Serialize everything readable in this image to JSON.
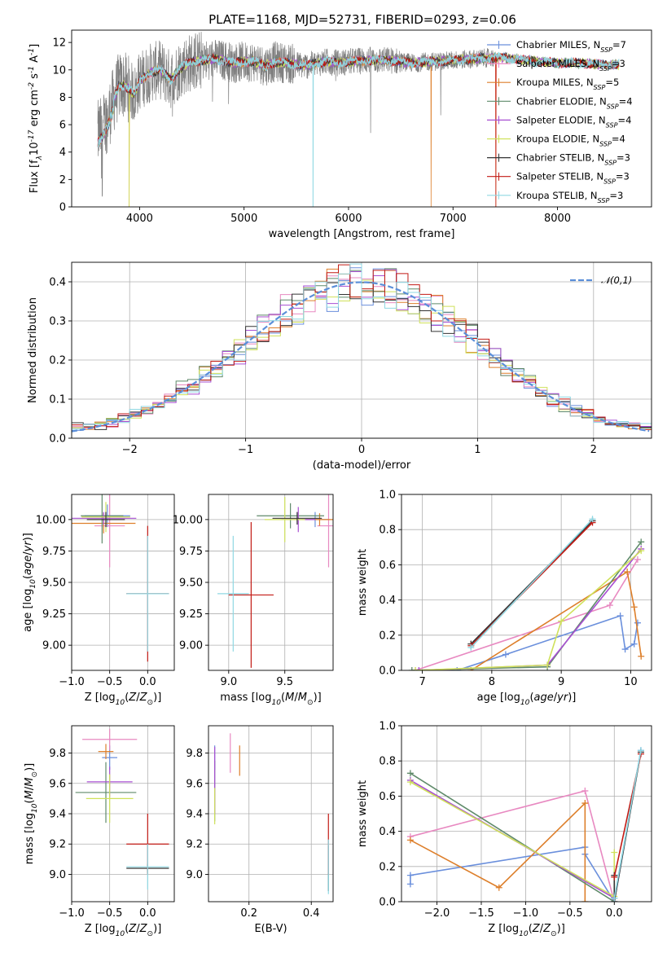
{
  "figure": {
    "title": "PLATE=1168, MJD=52731, FIBERID=0293, z=0.06"
  },
  "models": [
    {
      "name": "Chabrier MILES",
      "nssp": "7",
      "color": "#6a8fdc"
    },
    {
      "name": "Salpeter MILES",
      "nssp": "3",
      "color": "#e889c1"
    },
    {
      "name": "Kroupa MILES",
      "nssp": "5",
      "color": "#dd7f2b"
    },
    {
      "name": "Chabrier ELODIE",
      "nssp": "4",
      "color": "#5f8a6a"
    },
    {
      "name": "Salpeter ELODIE",
      "nssp": "4",
      "color": "#a84fd2"
    },
    {
      "name": "Kroupa ELODIE",
      "nssp": "4",
      "color": "#cfe15a"
    },
    {
      "name": "Chabrier STELIB",
      "nssp": "3",
      "color": "#333333"
    },
    {
      "name": "Salpeter STELIB",
      "nssp": "3",
      "color": "#c21a14"
    },
    {
      "name": "Kroupa STELIB",
      "nssp": "3",
      "color": "#8fd8e3"
    }
  ],
  "chart_data": [
    {
      "id": "spectrum",
      "type": "line",
      "xlabel": "wavelength [Angstrom, rest frame]",
      "ylabel": "Flux [f$_\\lambda$10$^{-17}$ erg cm$^{-2}$ s$^{-1}$ A$^{-1}$]",
      "xlim": [
        3350,
        8900
      ],
      "ylim": [
        0,
        12.9
      ],
      "xticks": [
        4000,
        5000,
        6000,
        7000,
        8000
      ],
      "yticks": [
        0,
        2,
        4,
        6,
        8,
        10,
        12
      ],
      "grid": false,
      "legend": "top-right",
      "data_color": "#808080",
      "continuum": [
        [
          3600,
          5.3
        ],
        [
          3650,
          5.8
        ],
        [
          3700,
          6.6
        ],
        [
          3750,
          7.8
        ],
        [
          3800,
          8.8
        ],
        [
          3850,
          8.9
        ],
        [
          3900,
          8.6
        ],
        [
          3950,
          8.2
        ],
        [
          4000,
          9.2
        ],
        [
          4100,
          9.8
        ],
        [
          4200,
          10.0
        ],
        [
          4300,
          9.3
        ],
        [
          4400,
          10.2
        ],
        [
          4500,
          10.6
        ],
        [
          4600,
          10.7
        ],
        [
          4700,
          10.8
        ],
        [
          4800,
          10.7
        ],
        [
          4900,
          10.5
        ],
        [
          5000,
          10.6
        ],
        [
          5100,
          10.6
        ],
        [
          5200,
          10.3
        ],
        [
          5300,
          10.6
        ],
        [
          5400,
          10.5
        ],
        [
          5500,
          10.4
        ],
        [
          5600,
          10.3
        ],
        [
          5700,
          10.5
        ],
        [
          5800,
          10.6
        ],
        [
          5900,
          10.5
        ],
        [
          6000,
          10.6
        ],
        [
          6200,
          10.7
        ],
        [
          6400,
          10.7
        ],
        [
          6600,
          10.5
        ],
        [
          6800,
          10.6
        ],
        [
          7000,
          10.7
        ],
        [
          7200,
          10.8
        ],
        [
          7400,
          10.9
        ],
        [
          7600,
          10.8
        ],
        [
          7800,
          10.6
        ],
        [
          8000,
          10.5
        ],
        [
          8200,
          10.5
        ],
        [
          8400,
          10.4
        ],
        [
          8590,
          10.4
        ]
      ],
      "data_range": [
        3600,
        7390
      ],
      "dropouts": [
        {
          "x": 3900,
          "models": [
            "Kroupa MILES",
            "Kroupa ELODIE"
          ]
        },
        {
          "x": 5660,
          "models": [
            "Kroupa STELIB"
          ]
        },
        {
          "x": 6790,
          "models": [
            "Kroupa MILES"
          ]
        },
        {
          "x": 7410,
          "models": [
            "Kroupa MILES",
            "Salpeter STELIB"
          ]
        }
      ]
    },
    {
      "id": "residuals",
      "type": "histogram",
      "xlabel": "(data-model)/error",
      "ylabel": "Normed distribution",
      "xlim": [
        -2.5,
        2.5
      ],
      "ylim": [
        0,
        0.45
      ],
      "xticks": [
        -2,
        -1,
        0,
        1,
        2
      ],
      "yticks": [
        0.0,
        0.1,
        0.2,
        0.3,
        0.4
      ],
      "grid": true,
      "legend": "top-right",
      "gaussian_label": "$\\mathcal{N}(0,1)$",
      "gaussian_color": "#5b8fd9",
      "bin_width": 0.1
    },
    {
      "id": "age-vs-Z",
      "type": "errorbar",
      "xlabel": "Z [log$_{10}$($Z$/$Z_\\odot$)]",
      "ylabel": "age  [log$_{10}$($age$/$yr$)]",
      "xlim": [
        -1.0,
        0.35
      ],
      "ylim": [
        8.8,
        10.2
      ],
      "xticks": [
        -1.0,
        -0.5,
        0.0
      ],
      "yticks": [
        9.0,
        9.25,
        9.5,
        9.75,
        10.0
      ],
      "grid": true,
      "points": [
        {
          "model": "Chabrier MILES",
          "x": -0.53,
          "xerr": 0.3,
          "y": 10.03,
          "yerr": 0.09
        },
        {
          "model": "Salpeter MILES",
          "x": -0.5,
          "xerr": 0.2,
          "y": 9.95,
          "yerr": 0.33
        },
        {
          "model": "Kroupa MILES",
          "x": -0.58,
          "xerr": 0.42,
          "y": 9.97,
          "yerr": 0.08
        },
        {
          "model": "Chabrier ELODIE",
          "x": -0.6,
          "xerr": 0.28,
          "y": 10.03,
          "yerr": 0.22
        },
        {
          "model": "Salpeter ELODIE",
          "x": -0.58,
          "xerr": 0.43,
          "y": 10.01,
          "yerr": 0.05
        },
        {
          "model": "Kroupa ELODIE",
          "x": -0.55,
          "xerr": 0.32,
          "y": 10.02,
          "yerr": 0.12
        },
        {
          "model": "Chabrier STELIB",
          "x": -0.55,
          "xerr": 0.25,
          "y": 10.0,
          "yerr": 0.06
        },
        {
          "model": "Salpeter STELIB",
          "x": 0.0,
          "xerr": 0.28,
          "y": 9.41,
          "yerr": 0.54
        },
        {
          "model": "Kroupa STELIB",
          "x": 0.0,
          "xerr": 0.28,
          "y": 9.41,
          "yerr": 0.46
        }
      ]
    },
    {
      "id": "age-vs-mass",
      "type": "errorbar",
      "xlabel": "mass [log$_{10}$($M$/$M_\\odot$)]",
      "ylabel": "",
      "xlim": [
        8.82,
        9.93
      ],
      "ylim": [
        8.8,
        10.2
      ],
      "xticks": [
        9.0,
        9.5
      ],
      "yticks": [
        9.0,
        9.25,
        9.5,
        9.75,
        10.0
      ],
      "grid": true,
      "points": [
        {
          "model": "Chabrier MILES",
          "x": 9.77,
          "xerr": 0.12,
          "y": 10.0,
          "yerr": 0.06
        },
        {
          "model": "Salpeter MILES",
          "x": 9.89,
          "xerr": 0.1,
          "y": 9.95,
          "yerr": 0.33
        },
        {
          "model": "Kroupa MILES",
          "x": 9.81,
          "xerr": 0.12,
          "y": 10.0,
          "yerr": 0.05
        },
        {
          "model": "Chabrier ELODIE",
          "x": 9.55,
          "xerr": 0.3,
          "y": 10.03,
          "yerr": 0.1
        },
        {
          "model": "Salpeter ELODIE",
          "x": 9.62,
          "xerr": 0.15,
          "y": 10.0,
          "yerr": 0.1
        },
        {
          "model": "Kroupa ELODIE",
          "x": 9.5,
          "xerr": 0.18,
          "y": 10.0,
          "yerr": 0.18
        },
        {
          "model": "Chabrier STELIB",
          "x": 9.61,
          "xerr": 0.22,
          "y": 10.01,
          "yerr": 0.05
        },
        {
          "model": "Salpeter STELIB",
          "x": 9.2,
          "xerr": 0.2,
          "y": 9.4,
          "yerr": 0.58
        },
        {
          "model": "Kroupa STELIB",
          "x": 9.04,
          "xerr": 0.14,
          "y": 9.41,
          "yerr": 0.46
        }
      ]
    },
    {
      "id": "massweight-vs-age",
      "type": "line",
      "xlabel": "age  [log$_{10}$($age$/$yr$)]",
      "ylabel": "mass weight",
      "xlim": [
        6.7,
        10.3
      ],
      "ylim": [
        0,
        1.0
      ],
      "xticks": [
        7,
        8,
        9,
        10
      ],
      "yticks": [
        0.0,
        0.2,
        0.4,
        0.6,
        0.8,
        1.0
      ],
      "grid": true,
      "series": [
        {
          "model": "Chabrier MILES",
          "points": [
            [
              7.5,
              0.0
            ],
            [
              8.2,
              0.09
            ],
            [
              9.85,
              0.31
            ],
            [
              9.92,
              0.12
            ],
            [
              10.05,
              0.15
            ],
            [
              10.1,
              0.27
            ]
          ]
        },
        {
          "model": "Salpeter MILES",
          "points": [
            [
              6.9,
              0.0
            ],
            [
              9.7,
              0.37
            ],
            [
              10.1,
              0.63
            ]
          ]
        },
        {
          "model": "Kroupa MILES",
          "points": [
            [
              7.7,
              0.0
            ],
            [
              9.95,
              0.56
            ],
            [
              10.05,
              0.36
            ],
            [
              10.15,
              0.08
            ]
          ]
        },
        {
          "model": "Chabrier ELODIE",
          "points": [
            [
              6.85,
              0.0
            ],
            [
              8.8,
              0.02
            ],
            [
              10.15,
              0.73
            ]
          ]
        },
        {
          "model": "Salpeter ELODIE",
          "points": [
            [
              6.95,
              0.0
            ],
            [
              8.8,
              0.03
            ],
            [
              10.15,
              0.69
            ]
          ]
        },
        {
          "model": "Kroupa ELODIE",
          "points": [
            [
              6.9,
              0.0
            ],
            [
              8.8,
              0.03
            ],
            [
              9.0,
              0.28
            ],
            [
              10.15,
              0.68
            ]
          ]
        },
        {
          "model": "Chabrier STELIB",
          "points": [
            [
              7.7,
              0.15
            ],
            [
              9.45,
              0.85
            ]
          ]
        },
        {
          "model": "Salpeter STELIB",
          "points": [
            [
              7.7,
              0.14
            ],
            [
              9.45,
              0.84
            ]
          ]
        },
        {
          "model": "Kroupa STELIB",
          "points": [
            [
              7.7,
              0.13
            ],
            [
              9.45,
              0.86
            ]
          ]
        }
      ]
    },
    {
      "id": "mass-vs-Z",
      "type": "errorbar",
      "xlabel": "Z [log$_{10}$($Z$/$Z_\\odot$)]",
      "ylabel": "mass [log$_{10}$($M$/$M_\\odot$)]",
      "xlim": [
        -1.0,
        0.35
      ],
      "ylim": [
        8.82,
        9.98
      ],
      "xticks": [
        -1.0,
        -0.5,
        0.0
      ],
      "yticks": [
        9.0,
        9.2,
        9.4,
        9.6,
        9.8
      ],
      "grid": true,
      "points": [
        {
          "model": "Chabrier MILES",
          "x": -0.5,
          "xerr": 0.1,
          "y": 9.77,
          "yerr": 0.08
        },
        {
          "model": "Salpeter MILES",
          "x": -0.5,
          "xerr": 0.36,
          "y": 9.89,
          "yerr": 0.07
        },
        {
          "model": "Kroupa MILES",
          "x": -0.55,
          "xerr": 0.1,
          "y": 9.81,
          "yerr": 0.05
        },
        {
          "model": "Chabrier ELODIE",
          "x": -0.55,
          "xerr": 0.4,
          "y": 9.54,
          "yerr": 0.2
        },
        {
          "model": "Salpeter ELODIE",
          "x": -0.5,
          "xerr": 0.3,
          "y": 9.61,
          "yerr": 0.1
        },
        {
          "model": "Kroupa ELODIE",
          "x": -0.5,
          "xerr": 0.31,
          "y": 9.5,
          "yerr": 0.16
        },
        {
          "model": "Chabrier STELIB",
          "x": 0.0,
          "xerr": 0.28,
          "y": 9.04,
          "yerr": 0.03
        },
        {
          "model": "Salpeter STELIB",
          "x": 0.0,
          "xerr": 0.28,
          "y": 9.2,
          "yerr": 0.2
        },
        {
          "model": "Kroupa STELIB",
          "x": 0.0,
          "xerr": 0.28,
          "y": 9.05,
          "yerr": 0.15
        }
      ]
    },
    {
      "id": "mass-vs-ebv",
      "type": "errorbar",
      "xlabel": "E(B-V)",
      "ylabel": "",
      "xlim": [
        0.07,
        0.47
      ],
      "ylim": [
        8.82,
        9.98
      ],
      "xticks": [
        0.2,
        0.4
      ],
      "yticks": [
        9.0,
        9.2,
        9.4,
        9.6,
        9.8
      ],
      "grid": true,
      "points": [
        {
          "model": "Chabrier MILES",
          "x": 0.09,
          "xerr": 0.0,
          "y": 9.77,
          "yerr": 0.08
        },
        {
          "model": "Salpeter MILES",
          "x": 0.14,
          "xerr": 0.0,
          "y": 9.8,
          "yerr": 0.13
        },
        {
          "model": "Kroupa MILES",
          "x": 0.17,
          "xerr": 0.0,
          "y": 9.75,
          "yerr": 0.1
        },
        {
          "model": "Chabrier ELODIE",
          "x": 0.09,
          "xerr": 0.0,
          "y": 9.55,
          "yerr": 0.2
        },
        {
          "model": "Salpeter ELODIE",
          "x": 0.09,
          "xerr": 0.0,
          "y": 9.62,
          "yerr": 0.22
        },
        {
          "model": "Kroupa ELODIE",
          "x": 0.09,
          "xerr": 0.0,
          "y": 9.45,
          "yerr": 0.12
        },
        {
          "model": "Chabrier STELIB",
          "x": 0.455,
          "xerr": 0.0,
          "y": 9.04,
          "yerr": 0.15
        },
        {
          "model": "Salpeter STELIB",
          "x": 0.455,
          "xerr": 0.0,
          "y": 9.2,
          "yerr": 0.2
        },
        {
          "model": "Kroupa STELIB",
          "x": 0.455,
          "xerr": 0.0,
          "y": 9.05,
          "yerr": 0.18
        }
      ]
    },
    {
      "id": "massweight-vs-Z",
      "type": "line",
      "xlabel": "Z [log$_{10}$($Z$/$Z_\\odot$)]",
      "ylabel": "mass weight",
      "xlim": [
        -2.4,
        0.42
      ],
      "ylim": [
        0,
        1.0
      ],
      "xticks": [
        -2.0,
        -1.5,
        -1.0,
        -0.5,
        0.0
      ],
      "yticks": [
        0.0,
        0.2,
        0.4,
        0.6,
        0.8,
        1.0
      ],
      "grid": true,
      "series": [
        {
          "model": "Chabrier MILES",
          "points": [
            [
              -2.3,
              0.1
            ],
            [
              -2.3,
              0.15
            ],
            [
              -0.33,
              0.31
            ],
            [
              -0.33,
              0.27
            ],
            [
              0.0,
              0.0
            ],
            [
              0.3,
              0.86
            ]
          ]
        },
        {
          "model": "Salpeter MILES",
          "points": [
            [
              -2.3,
              0.37
            ],
            [
              -0.33,
              0.63
            ],
            [
              0.0,
              0.0
            ]
          ]
        },
        {
          "model": "Kroupa MILES",
          "points": [
            [
              -2.3,
              0.35
            ],
            [
              -1.3,
              0.08
            ],
            [
              -0.33,
              0.56
            ],
            [
              -0.33,
              0.0
            ]
          ]
        },
        {
          "model": "Chabrier ELODIE",
          "points": [
            [
              -2.3,
              0.73
            ],
            [
              0.0,
              0.0
            ]
          ]
        },
        {
          "model": "Salpeter ELODIE",
          "points": [
            [
              -2.3,
              0.69
            ],
            [
              0.0,
              0.02
            ]
          ]
        },
        {
          "model": "Kroupa ELODIE",
          "points": [
            [
              -2.3,
              0.68
            ],
            [
              0.0,
              0.03
            ],
            [
              0.0,
              0.28
            ]
          ]
        },
        {
          "model": "Chabrier STELIB",
          "points": [
            [
              0.0,
              0.15
            ],
            [
              0.0,
              0.0
            ],
            [
              0.3,
              0.85
            ]
          ]
        },
        {
          "model": "Salpeter STELIB",
          "points": [
            [
              0.0,
              0.14
            ],
            [
              0.3,
              0.84
            ]
          ]
        },
        {
          "model": "Kroupa STELIB",
          "points": [
            [
              0.0,
              0.02
            ],
            [
              0.3,
              0.86
            ]
          ]
        }
      ]
    }
  ]
}
